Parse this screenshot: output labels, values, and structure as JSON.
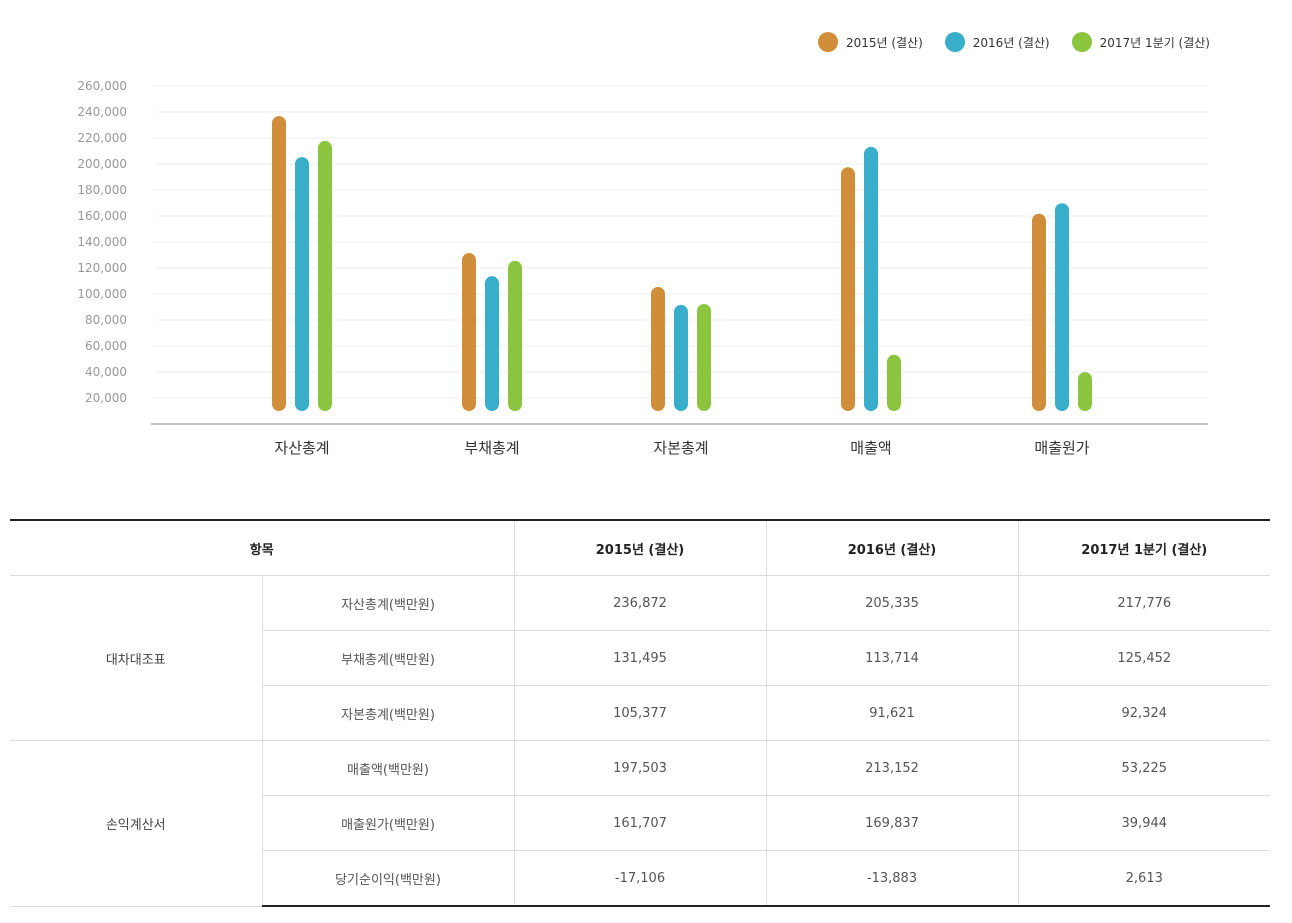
{
  "chart_data": {
    "type": "bar",
    "categories": [
      "자산총계",
      "부채총계",
      "자본총계",
      "매출액",
      "매출원가"
    ],
    "series": [
      {
        "name": "2015년 (결산)",
        "color": "#d18e3a",
        "values": [
          236872,
          131495,
          105377,
          197503,
          161707
        ]
      },
      {
        "name": "2016년 (결산)",
        "color": "#39aecb",
        "values": [
          205335,
          113714,
          91621,
          213152,
          169837
        ]
      },
      {
        "name": "2017년 1분기 (결산)",
        "color": "#8bc53f",
        "values": [
          217776,
          125452,
          92324,
          53225,
          39944
        ]
      }
    ],
    "y_ticks": [
      "20,000",
      "40,000",
      "60,000",
      "80,000",
      "100,000",
      "120,000",
      "140,000",
      "160,000",
      "180,000",
      "200,000",
      "220,000",
      "240,000",
      "260,000"
    ],
    "ylim": [
      0,
      260000
    ],
    "grid": true,
    "legend_position": "top-right"
  },
  "table": {
    "headers": [
      "항목",
      "2015년 (결산)",
      "2016년 (결산)",
      "2017년 1분기 (결산)"
    ],
    "groups": [
      {
        "name": "대차대조표",
        "rows": [
          {
            "item": "자산총계(백만원)",
            "v2015": "236,872",
            "v2016": "205,335",
            "v2017": "217,776"
          },
          {
            "item": "부채총계(백만원)",
            "v2015": "131,495",
            "v2016": "113,714",
            "v2017": "125,452"
          },
          {
            "item": "자본총계(백만원)",
            "v2015": "105,377",
            "v2016": "91,621",
            "v2017": "92,324"
          }
        ]
      },
      {
        "name": "손익계산서",
        "rows": [
          {
            "item": "매출액(백만원)",
            "v2015": "197,503",
            "v2016": "213,152",
            "v2017": "53,225"
          },
          {
            "item": "매출원가(백만원)",
            "v2015": "161,707",
            "v2016": "169,837",
            "v2017": "39,944"
          },
          {
            "item": "당기순이익(백만원)",
            "v2015": "-17,106",
            "v2016": "-13,883",
            "v2017": "2,613"
          }
        ]
      }
    ]
  }
}
